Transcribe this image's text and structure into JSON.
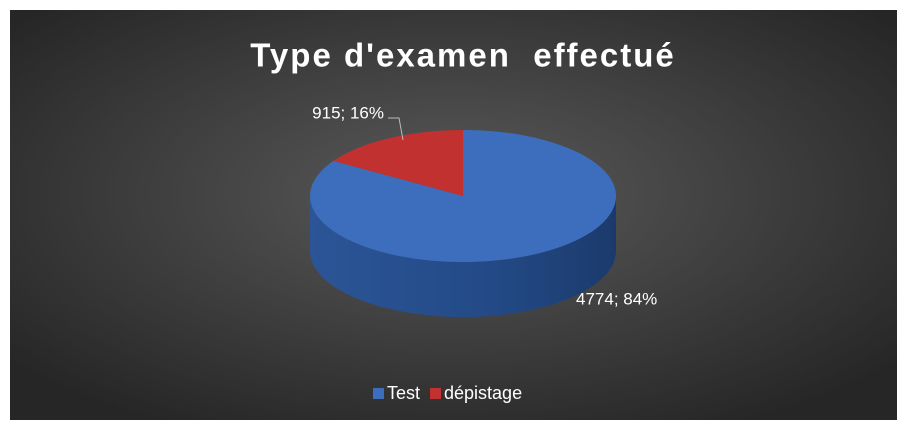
{
  "chart_data": {
    "type": "pie",
    "title": "Type d'examen  effectué",
    "categories": [
      "Test",
      "dépistage"
    ],
    "values": [
      4774,
      915
    ],
    "value_labels": [
      "4774; 84%",
      "915; 16%"
    ],
    "colors": [
      "#3d6ebd",
      "#c0312f"
    ],
    "legend": "bottom"
  }
}
